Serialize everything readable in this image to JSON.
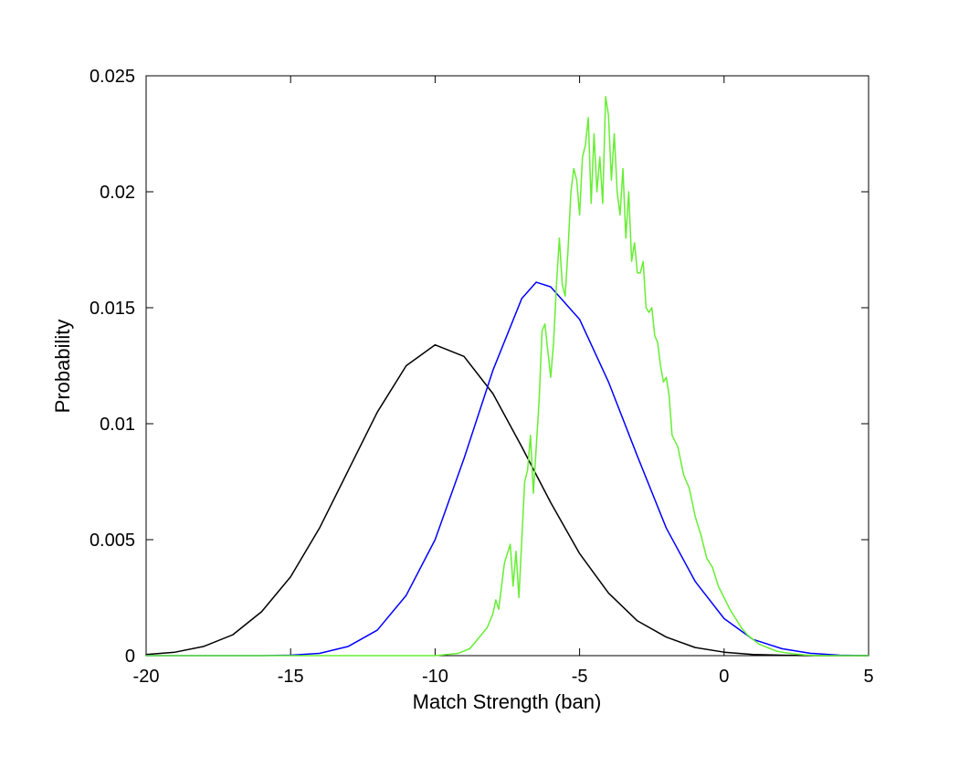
{
  "chart_data": {
    "type": "line",
    "title": "",
    "xlabel": "Match Strength (ban)",
    "ylabel": "Probability",
    "xlim": [
      -20,
      5
    ],
    "ylim": [
      0,
      0.025
    ],
    "xticks": [
      -20,
      -15,
      -10,
      -5,
      0,
      5
    ],
    "xtick_labels": [
      "-20",
      "-15",
      "-10",
      "-5",
      "0",
      "5"
    ],
    "yticks": [
      0,
      0.005,
      0.01,
      0.015,
      0.02,
      0.025
    ],
    "ytick_labels": [
      "0",
      "0.005",
      "0.01",
      "0.015",
      "0.02",
      "0.025"
    ],
    "grid": false,
    "legend": "none",
    "series": [
      {
        "color": "#000000",
        "x": [
          -20,
          -19,
          -18,
          -17,
          -16,
          -15,
          -14,
          -13,
          -12,
          -11,
          -10,
          -9,
          -8,
          -7,
          -6,
          -5,
          -4,
          -3,
          -2,
          -1,
          0,
          1,
          2,
          3,
          4,
          5
        ],
        "y": [
          5e-05,
          0.00015,
          0.0004,
          0.0009,
          0.0019,
          0.0034,
          0.0055,
          0.008,
          0.0105,
          0.0125,
          0.0134,
          0.0129,
          0.0113,
          0.009,
          0.0066,
          0.0044,
          0.0027,
          0.0015,
          0.0008,
          0.00035,
          0.00015,
          5e-05,
          2e-05,
          0,
          0,
          0
        ]
      },
      {
        "color": "#0000ff",
        "x": [
          -20,
          -18,
          -16,
          -15,
          -14,
          -13,
          -12,
          -11,
          -10,
          -9,
          -8,
          -7,
          -6.5,
          -6,
          -5,
          -4,
          -3,
          -2,
          -1,
          0,
          1,
          2,
          3,
          4,
          5
        ],
        "y": [
          0,
          0,
          0,
          2e-05,
          0.0001,
          0.0004,
          0.0011,
          0.0026,
          0.005,
          0.0085,
          0.0123,
          0.0154,
          0.0161,
          0.0159,
          0.0145,
          0.0118,
          0.0086,
          0.0055,
          0.0032,
          0.0016,
          0.0007,
          0.0003,
          0.0001,
          2e-05,
          0
        ]
      },
      {
        "color": "#66ee33",
        "x": [
          -20,
          -10.0,
          -9.6,
          -9.2,
          -9.0,
          -8.8,
          -8.6,
          -8.4,
          -8.2,
          -8.0,
          -7.9,
          -7.8,
          -7.6,
          -7.4,
          -7.3,
          -7.2,
          -7.1,
          -7.0,
          -6.9,
          -6.8,
          -6.7,
          -6.6,
          -6.5,
          -6.4,
          -6.3,
          -6.2,
          -6.0,
          -5.9,
          -5.8,
          -5.7,
          -5.6,
          -5.5,
          -5.4,
          -5.3,
          -5.2,
          -5.1,
          -5.0,
          -4.9,
          -4.8,
          -4.7,
          -4.6,
          -4.5,
          -4.4,
          -4.3,
          -4.2,
          -4.1,
          -4.0,
          -3.9,
          -3.8,
          -3.7,
          -3.6,
          -3.5,
          -3.4,
          -3.3,
          -3.2,
          -3.1,
          -3.0,
          -2.9,
          -2.8,
          -2.7,
          -2.6,
          -2.5,
          -2.4,
          -2.3,
          -2.2,
          -2.1,
          -2.0,
          -1.9,
          -1.8,
          -1.6,
          -1.4,
          -1.2,
          -1.0,
          -0.8,
          -0.6,
          -0.4,
          -0.2,
          0.0,
          0.2,
          0.4,
          0.6,
          0.8,
          1.0,
          1.2,
          1.4,
          1.6,
          1.8,
          2.0,
          2.4,
          2.8,
          3.2,
          5.0
        ],
        "y": [
          0,
          0,
          5e-05,
          0.0001,
          0.0002,
          0.0003,
          0.0006,
          0.0009,
          0.0012,
          0.0018,
          0.0024,
          0.002,
          0.004,
          0.0048,
          0.003,
          0.0045,
          0.0025,
          0.005,
          0.0075,
          0.008,
          0.0095,
          0.007,
          0.009,
          0.011,
          0.014,
          0.0143,
          0.012,
          0.0135,
          0.016,
          0.018,
          0.016,
          0.0155,
          0.0175,
          0.02,
          0.021,
          0.0205,
          0.019,
          0.0215,
          0.022,
          0.0232,
          0.0195,
          0.0225,
          0.02,
          0.0215,
          0.0195,
          0.0241,
          0.0233,
          0.0205,
          0.0225,
          0.02,
          0.019,
          0.021,
          0.018,
          0.02,
          0.017,
          0.0178,
          0.0165,
          0.0165,
          0.017,
          0.015,
          0.0148,
          0.015,
          0.0138,
          0.0135,
          0.0125,
          0.0118,
          0.012,
          0.0112,
          0.0095,
          0.009,
          0.0078,
          0.0072,
          0.006,
          0.0052,
          0.0042,
          0.0038,
          0.003,
          0.0025,
          0.002,
          0.0016,
          0.0012,
          0.0009,
          0.0007,
          0.0005,
          0.0004,
          0.0003,
          0.0002,
          0.00015,
          8e-05,
          3e-05,
          0,
          0
        ]
      }
    ]
  }
}
